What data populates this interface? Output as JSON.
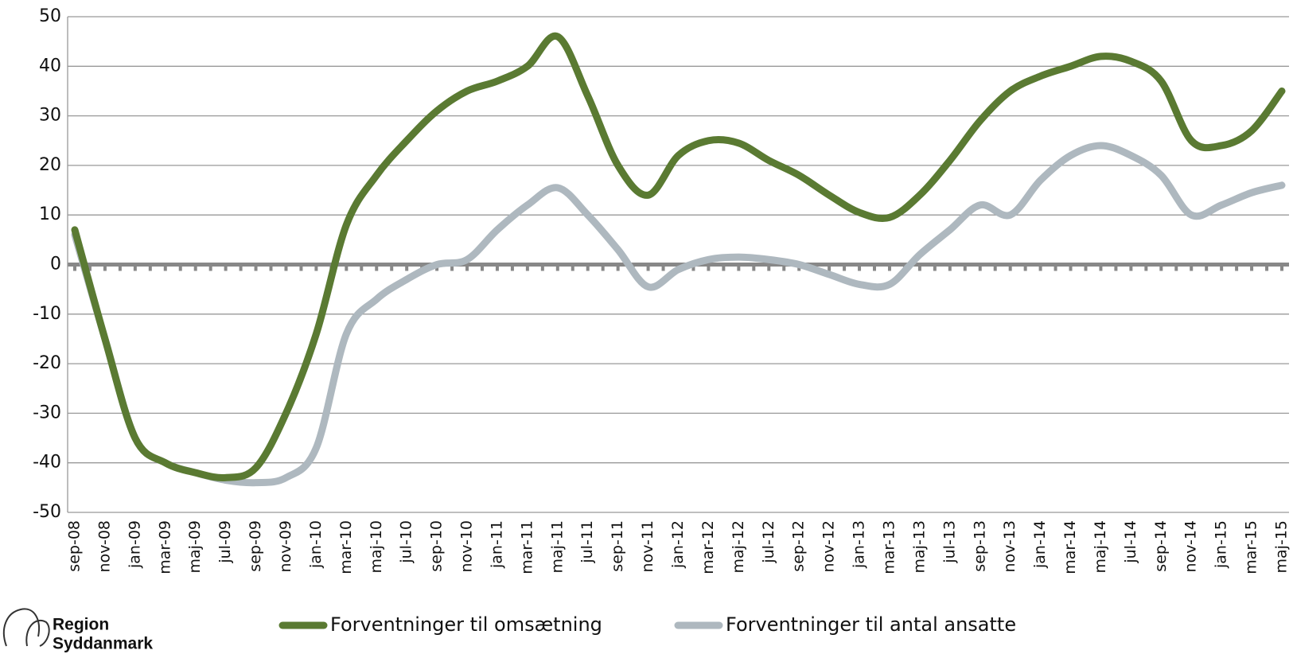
{
  "chart_data": {
    "type": "line",
    "categories": [
      "sep-08",
      "nov-08",
      "jan-09",
      "mar-09",
      "maj-09",
      "jul-09",
      "sep-09",
      "nov-09",
      "jan-10",
      "mar-10",
      "maj-10",
      "jul-10",
      "sep-10",
      "nov-10",
      "jan-11",
      "mar-11",
      "maj-11",
      "jul-11",
      "sep-11",
      "nov-11",
      "jan-12",
      "mar-12",
      "maj-12",
      "jul-12",
      "sep-12",
      "nov-12",
      "jan-13",
      "mar-13",
      "maj-13",
      "jul-13",
      "sep-13",
      "nov-13",
      "jan-14",
      "mar-14",
      "maj-14",
      "jul-14",
      "sep-14",
      "nov-14",
      "jan-15",
      "mar-15",
      "maj-15"
    ],
    "series": [
      {
        "name": "Forventninger til omsætning",
        "color": "#5a7a32",
        "values": [
          7,
          -15,
          -35,
          -40,
          -42,
          -43,
          -41,
          -30,
          -14,
          8,
          18,
          25,
          31,
          35,
          37,
          40,
          46,
          34,
          20,
          14,
          22,
          25,
          24.5,
          21,
          18,
          14,
          10.5,
          9.5,
          14,
          21,
          29,
          35,
          38,
          40,
          42,
          41,
          37,
          25,
          24,
          27,
          35
        ]
      },
      {
        "name": "Forventninger til antal ansatte",
        "color": "#aeb8bf",
        "values": [
          6,
          -15,
          -35,
          -40,
          -42,
          -43.5,
          -44,
          -43,
          -37,
          -14,
          -7,
          -3,
          0,
          1,
          7,
          12,
          15.5,
          10,
          3,
          -4.5,
          -1,
          1,
          1.5,
          1,
          0,
          -2,
          -4,
          -4,
          2,
          7,
          12,
          10,
          17,
          22,
          24,
          22,
          18,
          10,
          12,
          14.5,
          16
        ]
      }
    ],
    "ylim": [
      -50,
      50
    ],
    "yticks": [
      -50,
      -40,
      -30,
      -20,
      -10,
      0,
      10,
      20,
      30,
      40,
      50
    ],
    "grid": true,
    "logo": [
      "Region",
      "Syddanmark"
    ]
  }
}
